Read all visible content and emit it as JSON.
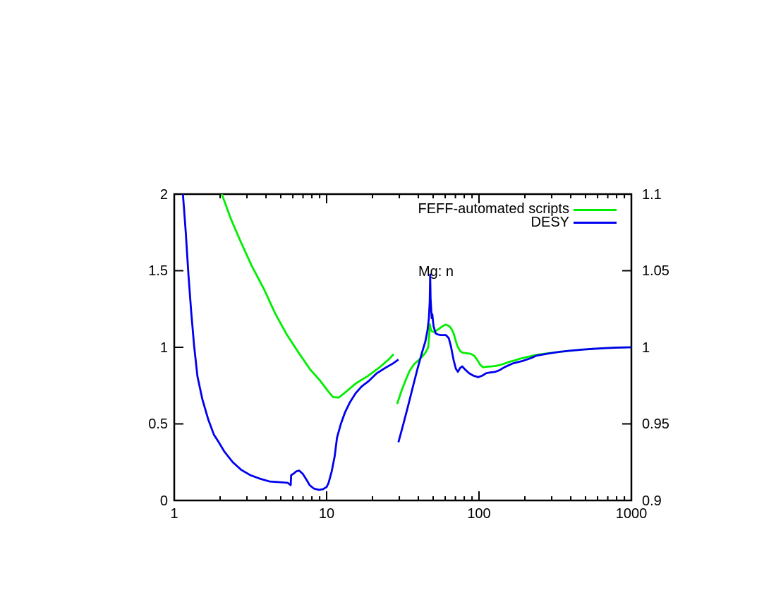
{
  "chart_data": {
    "type": "line",
    "title": "Mg: n",
    "annotation": {
      "text": "Mg: n"
    },
    "grid": false,
    "background": "#ffffff",
    "axis_color": "#000000",
    "x_axis": {
      "scale": "log",
      "min": 1,
      "max": 1000,
      "tick_values": [
        1,
        10,
        100,
        1000
      ],
      "tick_labels": [
        "1",
        "10",
        "100",
        "1000"
      ],
      "minor_ticks_per_decade": [
        2,
        3,
        4,
        5,
        6,
        7,
        8,
        9
      ]
    },
    "y_axis_left": {
      "min": 0,
      "max": 2,
      "tick_values": [
        0,
        0.5,
        1,
        1.5,
        2
      ],
      "tick_labels": [
        "0",
        "0.5",
        "1",
        "1.5",
        "2"
      ]
    },
    "y_axis_right": {
      "min": 0.9,
      "max": 1.1,
      "tick_values": [
        0.9,
        0.95,
        1,
        1.05,
        1.1
      ],
      "tick_labels": [
        "0.9",
        "0.95",
        "1",
        "1.05",
        "1.1"
      ]
    },
    "legend": {
      "position": "top-right-inside",
      "entries": [
        {
          "label": "FEFF-automated scripts",
          "color": "#00ee00"
        },
        {
          "label": "DESY",
          "color": "#0000ee"
        }
      ]
    },
    "series": [
      {
        "name": "FEFF-automated scripts",
        "color": "#00ee00",
        "y_axis": "left",
        "segments": [
          [
            [
              2.0,
              2.05
            ],
            [
              2.07,
              1.99
            ],
            [
              2.35,
              1.84
            ],
            [
              2.7,
              1.7
            ],
            [
              3.23,
              1.53
            ],
            [
              3.88,
              1.38
            ],
            [
              4.6,
              1.22
            ],
            [
              5.5,
              1.08
            ],
            [
              6.6,
              0.96
            ],
            [
              7.8,
              0.855
            ],
            [
              9.1,
              0.78
            ],
            [
              10.1,
              0.72
            ],
            [
              11.0,
              0.675
            ],
            [
              12.0,
              0.672
            ],
            [
              13.05,
              0.7
            ],
            [
              15.6,
              0.765
            ],
            [
              18.8,
              0.815
            ],
            [
              22.3,
              0.87
            ],
            [
              25.8,
              0.925
            ],
            [
              27.5,
              0.955
            ]
          ],
          [
            [
              29.0,
              0.63
            ],
            [
              31.0,
              0.715
            ],
            [
              33.0,
              0.785
            ],
            [
              35.0,
              0.845
            ],
            [
              37.5,
              0.89
            ],
            [
              40.0,
              0.915
            ],
            [
              42.5,
              0.94
            ],
            [
              44.5,
              0.965
            ],
            [
              46.4,
              1.0
            ],
            [
              47.3,
              1.1
            ],
            [
              47.6,
              1.15
            ],
            [
              48.2,
              1.12
            ],
            [
              49.1,
              1.105
            ],
            [
              50.7,
              1.1
            ],
            [
              54.5,
              1.12
            ],
            [
              58,
              1.14
            ],
            [
              60.6,
              1.148
            ],
            [
              63.9,
              1.138
            ],
            [
              66,
              1.12
            ],
            [
              68.2,
              1.09
            ],
            [
              70,
              1.05
            ],
            [
              72,
              1.01
            ],
            [
              75.2,
              0.975
            ],
            [
              78,
              0.965
            ],
            [
              82,
              0.962
            ],
            [
              88,
              0.958
            ],
            [
              93,
              0.945
            ],
            [
              97.8,
              0.915
            ],
            [
              102,
              0.885
            ],
            [
              106,
              0.87
            ],
            [
              112,
              0.873
            ],
            [
              120,
              0.875
            ],
            [
              128,
              0.878
            ],
            [
              138,
              0.885
            ],
            [
              148,
              0.895
            ],
            [
              158,
              0.905
            ],
            [
              172,
              0.915
            ],
            [
              185,
              0.925
            ],
            [
              200,
              0.933
            ],
            [
              237,
              0.95
            ],
            [
              280,
              0.96
            ],
            [
              336,
              0.97
            ],
            [
              400,
              0.978
            ],
            [
              478,
              0.985
            ],
            [
              560,
              0.99
            ],
            [
              684,
              0.995
            ],
            [
              800,
              0.998
            ],
            [
              1000,
              1.0
            ]
          ]
        ]
      },
      {
        "name": "DESY",
        "color": "#0000ee",
        "y_axis": "left",
        "segments": [
          [
            [
              1.13,
              2.05
            ],
            [
              1.16,
              1.9
            ],
            [
              1.19,
              1.75
            ],
            [
              1.24,
              1.47
            ],
            [
              1.29,
              1.24
            ],
            [
              1.35,
              1.01
            ],
            [
              1.42,
              0.81
            ],
            [
              1.53,
              0.66
            ],
            [
              1.67,
              0.53
            ],
            [
              1.82,
              0.43
            ],
            [
              1.96,
              0.38
            ],
            [
              2.13,
              0.32
            ],
            [
              2.42,
              0.25
            ],
            [
              2.75,
              0.2
            ],
            [
              3.16,
              0.165
            ],
            [
              3.63,
              0.143
            ],
            [
              4.22,
              0.124
            ],
            [
              4.85,
              0.12
            ],
            [
              5.56,
              0.115
            ],
            [
              5.81,
              0.1
            ],
            [
              5.85,
              0.165
            ],
            [
              6.06,
              0.175
            ],
            [
              6.32,
              0.19
            ],
            [
              6.6,
              0.195
            ],
            [
              6.96,
              0.175
            ],
            [
              7.33,
              0.14
            ],
            [
              7.74,
              0.1
            ],
            [
              8.24,
              0.078
            ],
            [
              8.9,
              0.069
            ],
            [
              9.48,
              0.074
            ],
            [
              10.0,
              0.088
            ],
            [
              10.3,
              0.115
            ],
            [
              10.8,
              0.19
            ],
            [
              11.3,
              0.29
            ],
            [
              11.7,
              0.41
            ],
            [
              12.4,
              0.5
            ],
            [
              13.2,
              0.575
            ],
            [
              14.2,
              0.64
            ],
            [
              15.5,
              0.7
            ],
            [
              17.0,
              0.745
            ],
            [
              18.9,
              0.78
            ],
            [
              21.3,
              0.83
            ],
            [
              24.2,
              0.865
            ],
            [
              27.3,
              0.895
            ],
            [
              29.6,
              0.92
            ]
          ],
          [
            [
              29.6,
              0.38
            ],
            [
              31.9,
              0.5
            ],
            [
              34.4,
              0.625
            ],
            [
              37.1,
              0.755
            ],
            [
              39.5,
              0.86
            ],
            [
              42.1,
              0.96
            ],
            [
              44.5,
              1.04
            ],
            [
              45.9,
              1.11
            ],
            [
              46.9,
              1.19
            ],
            [
              47.5,
              1.3
            ],
            [
              47.8,
              1.475
            ],
            [
              48.1,
              1.32
            ],
            [
              48.6,
              1.24
            ],
            [
              49.0,
              1.19
            ],
            [
              49.4,
              1.215
            ],
            [
              50.0,
              1.16
            ],
            [
              50.4,
              1.135
            ],
            [
              52,
              1.09
            ],
            [
              54,
              1.083
            ],
            [
              56.2,
              1.08
            ],
            [
              60.6,
              1.08
            ],
            [
              63.3,
              1.06
            ],
            [
              65.3,
              1.01
            ],
            [
              68.2,
              0.915
            ],
            [
              70.5,
              0.86
            ],
            [
              72.7,
              0.84
            ],
            [
              75.2,
              0.865
            ],
            [
              77.6,
              0.875
            ],
            [
              81,
              0.855
            ],
            [
              86.3,
              0.83
            ],
            [
              91.7,
              0.815
            ],
            [
              98.8,
              0.805
            ],
            [
              105,
              0.815
            ],
            [
              111,
              0.83
            ],
            [
              117,
              0.835
            ],
            [
              128,
              0.84
            ],
            [
              136,
              0.85
            ],
            [
              147,
              0.87
            ],
            [
              167,
              0.895
            ],
            [
              192,
              0.91
            ],
            [
              220,
              0.93
            ],
            [
              237,
              0.945
            ],
            [
              280,
              0.958
            ],
            [
              336,
              0.97
            ],
            [
              400,
              0.978
            ],
            [
              478,
              0.985
            ],
            [
              560,
              0.99
            ],
            [
              684,
              0.995
            ],
            [
              800,
              0.998
            ],
            [
              1000,
              1.0
            ]
          ]
        ]
      }
    ]
  }
}
